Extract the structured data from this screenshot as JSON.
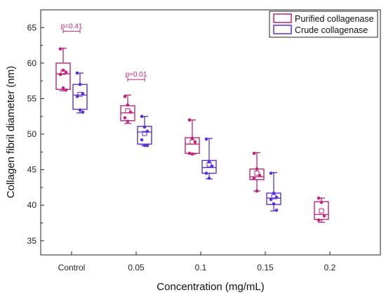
{
  "chart_data": {
    "type": "box",
    "title": "",
    "xlabel": "Concentration (mg/mL)",
    "ylabel": "Collagen fibril diameter (nm)",
    "ylim": [
      33,
      67.5
    ],
    "yticks": [
      35,
      40,
      45,
      50,
      55,
      60,
      65
    ],
    "categories": [
      "Control",
      "0.05",
      "0.1",
      "0.15",
      "0.2"
    ],
    "grid": false,
    "legend_position": "top-right",
    "series": [
      {
        "name": "Purified collagenase",
        "color": "#c0247a",
        "boxes": [
          {
            "category": "Control",
            "min": 56.1,
            "q1": 56.3,
            "median": 58.5,
            "q3": 60.0,
            "max": 62.1,
            "mean": 58.7,
            "points": [
              62.0,
              59.0,
              58.7,
              58.4,
              56.5,
              56.2
            ]
          },
          {
            "category": "0.05",
            "min": 51.5,
            "q1": 51.9,
            "median": 53.0,
            "q3": 54.0,
            "max": 55.5,
            "mean": 53.3,
            "points": [
              55.3,
              54.1,
              53.1,
              52.3,
              51.8
            ]
          },
          {
            "category": "0.1",
            "min": 47.2,
            "q1": 47.3,
            "median": 48.6,
            "q3": 49.5,
            "max": 52.0,
            "mean": 48.9,
            "points": [
              52.0,
              49.4,
              48.9,
              47.3,
              47.2
            ]
          },
          {
            "category": "0.15",
            "min": 42.0,
            "q1": 43.6,
            "median": 44.0,
            "q3": 45.1,
            "max": 47.4,
            "mean": 44.5,
            "points": [
              47.3,
              45.1,
              44.2,
              43.8,
              42.0
            ]
          },
          {
            "category": "0.2",
            "min": 37.6,
            "q1": 38.0,
            "median": 38.7,
            "q3": 40.5,
            "max": 41.0,
            "mean": 39.2,
            "points": [
              41.0,
              40.4,
              38.5,
              37.9
            ]
          }
        ]
      },
      {
        "name": "Crude collagenase",
        "color": "#5b2fd6",
        "boxes": [
          {
            "category": "Control",
            "min": 53.0,
            "q1": 53.5,
            "median": 55.5,
            "q3": 57.0,
            "max": 58.6,
            "mean": 55.6,
            "points": [
              58.6,
              57.0,
              55.7,
              55.3,
              53.4,
              53.1
            ]
          },
          {
            "category": "0.05",
            "min": 48.4,
            "q1": 48.6,
            "median": 50.3,
            "q3": 51.1,
            "max": 52.5,
            "mean": 50.1,
            "points": [
              52.5,
              51.0,
              50.4,
              49.2,
              48.4,
              48.4
            ]
          },
          {
            "category": "0.1",
            "min": 43.7,
            "q1": 44.5,
            "median": 45.3,
            "q3": 46.3,
            "max": 49.4,
            "mean": 45.7,
            "points": [
              49.3,
              46.1,
              45.5,
              44.5,
              43.8
            ]
          },
          {
            "category": "0.15",
            "min": 39.2,
            "q1": 40.1,
            "median": 41.0,
            "q3": 41.7,
            "max": 44.6,
            "mean": 41.2,
            "points": [
              44.5,
              41.7,
              41.1,
              40.8,
              40.2,
              39.3
            ]
          }
        ]
      }
    ],
    "annotations": [
      {
        "text": "p=0.41",
        "category": "Control",
        "y": 64.5,
        "color": "#c0247a"
      },
      {
        "text": "p=0.01",
        "category": "0.05",
        "y": 57.7,
        "color": "#c0247a"
      }
    ]
  }
}
